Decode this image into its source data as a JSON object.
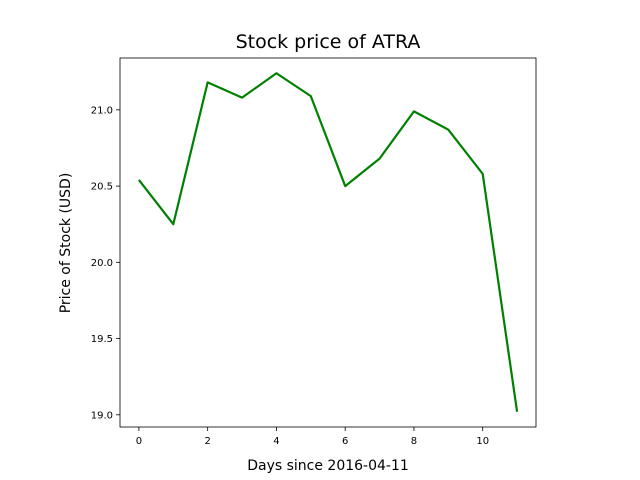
{
  "chart_data": {
    "type": "line",
    "title": "Stock price of ATRA",
    "xlabel": "Days since 2016-04-11",
    "ylabel": "Price of Stock (USD)",
    "x": [
      0,
      1,
      2,
      3,
      4,
      5,
      6,
      7,
      8,
      9,
      10,
      11
    ],
    "series": [
      {
        "values": [
          20.54,
          20.25,
          21.18,
          21.08,
          21.24,
          21.09,
          20.5,
          20.68,
          20.99,
          20.87,
          20.58,
          19.02
        ],
        "color": "#008000"
      }
    ],
    "xticks": [
      0,
      2,
      4,
      6,
      8,
      10
    ],
    "xtick_labels": [
      "0",
      "2",
      "4",
      "6",
      "8",
      "10"
    ],
    "yticks": [
      19.0,
      19.5,
      20.0,
      20.5,
      21.0
    ],
    "ytick_labels": [
      "19.0",
      "19.5",
      "20.0",
      "20.5",
      "21.0"
    ],
    "xlim": [
      -0.55,
      11.55
    ],
    "ylim": [
      18.92,
      21.34
    ],
    "grid": false,
    "legend": false
  }
}
